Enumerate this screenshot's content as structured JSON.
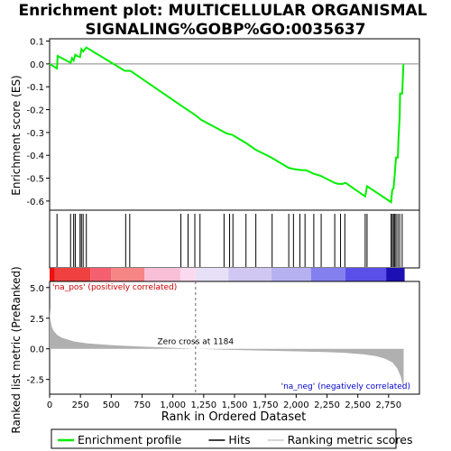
{
  "chart_data": {
    "type": "line",
    "title_line1": "Enrichment plot: MULTICELLULAR ORGANISMAL",
    "title_line2": "SIGNALING%GOBP%GO:0035637",
    "es_panel": {
      "ylabel": "Enrichment score (ES)",
      "ylim": [
        -0.64,
        0.11
      ],
      "yticks": [
        0.1,
        0.0,
        -0.1,
        -0.2,
        -0.3,
        -0.4,
        -0.5,
        -0.6
      ],
      "ytick_labels": [
        "0.1",
        "0.0",
        "-0.1",
        "-0.2",
        "-0.3",
        "-0.4",
        "-0.5",
        "-0.6"
      ],
      "grid": false,
      "series_name": "Enrichment profile",
      "color": "#00ee00",
      "points": [
        [
          0,
          0.0
        ],
        [
          60,
          -0.02
        ],
        [
          65,
          0.035
        ],
        [
          170,
          0.005
        ],
        [
          182,
          0.025
        ],
        [
          195,
          0.015
        ],
        [
          208,
          0.04
        ],
        [
          222,
          0.035
        ],
        [
          247,
          0.03
        ],
        [
          258,
          0.065
        ],
        [
          272,
          0.055
        ],
        [
          298,
          0.072
        ],
        [
          610,
          -0.03
        ],
        [
          655,
          -0.03
        ],
        [
          1060,
          -0.18
        ],
        [
          1130,
          -0.205
        ],
        [
          1185,
          -0.225
        ],
        [
          1230,
          -0.245
        ],
        [
          1405,
          -0.295
        ],
        [
          1440,
          -0.305
        ],
        [
          1480,
          -0.31
        ],
        [
          1590,
          -0.345
        ],
        [
          1670,
          -0.375
        ],
        [
          1800,
          -0.41
        ],
        [
          1940,
          -0.455
        ],
        [
          1980,
          -0.46
        ],
        [
          2040,
          -0.465
        ],
        [
          2080,
          -0.465
        ],
        [
          2140,
          -0.48
        ],
        [
          2200,
          -0.49
        ],
        [
          2310,
          -0.52
        ],
        [
          2340,
          -0.525
        ],
        [
          2380,
          -0.525
        ],
        [
          2400,
          -0.52
        ],
        [
          2560,
          -0.58
        ],
        [
          2575,
          -0.535
        ],
        [
          2770,
          -0.605
        ],
        [
          2780,
          -0.55
        ],
        [
          2790,
          -0.545
        ],
        [
          2800,
          -0.48
        ],
        [
          2810,
          -0.41
        ],
        [
          2825,
          -0.41
        ],
        [
          2830,
          -0.33
        ],
        [
          2840,
          -0.23
        ],
        [
          2843,
          -0.13
        ],
        [
          2860,
          -0.13
        ],
        [
          2870,
          -0.005
        ],
        [
          2872,
          0.0
        ]
      ]
    },
    "hits": {
      "series_name": "Hits",
      "positions": [
        60,
        170,
        195,
        208,
        247,
        258,
        272,
        298,
        617,
        650,
        1065,
        1123,
        1178,
        1220,
        1415,
        1460,
        1487,
        1593,
        1673,
        1805,
        1940,
        1978,
        2030,
        2072,
        2143,
        2203,
        2313,
        2360,
        2395,
        2560,
        2575,
        2770,
        2780,
        2790,
        2800,
        2810,
        2825,
        2840,
        2860
      ]
    },
    "heatmap_bar": {
      "segments": [
        {
          "from": 0,
          "to": 40,
          "color": "#ee1111"
        },
        {
          "from": 40,
          "to": 330,
          "color": "#f04040"
        },
        {
          "from": 330,
          "to": 500,
          "color": "#f46070"
        },
        {
          "from": 500,
          "to": 770,
          "color": "#f68585"
        },
        {
          "from": 770,
          "to": 1060,
          "color": "#f8bfd6"
        },
        {
          "from": 1060,
          "to": 1184,
          "color": "#fbd9ef"
        },
        {
          "from": 1184,
          "to": 1450,
          "color": "#e8e0f6"
        },
        {
          "from": 1450,
          "to": 1800,
          "color": "#d0c8f2"
        },
        {
          "from": 1800,
          "to": 2120,
          "color": "#b6b2f2"
        },
        {
          "from": 2120,
          "to": 2400,
          "color": "#8480ef"
        },
        {
          "from": 2400,
          "to": 2730,
          "color": "#5a4fe8"
        },
        {
          "from": 2730,
          "to": 2880,
          "color": "#1c10b4"
        }
      ]
    },
    "rank_panel": {
      "ylabel": "Ranked list metric (PreRanked)",
      "xlabel": "Rank in Ordered Dataset",
      "ylim": [
        -3.7,
        5.5
      ],
      "yticks": [
        5.0,
        2.5,
        0.0,
        -2.5
      ],
      "ytick_labels": [
        "5.0",
        "2.5",
        "0.0",
        "-2.5"
      ],
      "xlim": [
        0,
        3000
      ],
      "xticks": [
        0,
        250,
        500,
        750,
        1000,
        1250,
        1500,
        1750,
        2000,
        2250,
        2500,
        2750
      ],
      "xtick_labels": [
        "0",
        "250",
        "500",
        "750",
        "1,000",
        "1,250",
        "1,500",
        "1,750",
        "2,000",
        "2,250",
        "2,500",
        "2,750"
      ],
      "series_name": "Ranking metric scores",
      "color": "#b0b0b0",
      "profile": [
        [
          0,
          3.4
        ],
        [
          5,
          2.5
        ],
        [
          15,
          1.9
        ],
        [
          30,
          1.5
        ],
        [
          60,
          1.15
        ],
        [
          100,
          0.9
        ],
        [
          200,
          0.6
        ],
        [
          300,
          0.45
        ],
        [
          500,
          0.3
        ],
        [
          750,
          0.18
        ],
        [
          1000,
          0.08
        ],
        [
          1184,
          0.0
        ],
        [
          1400,
          -0.07
        ],
        [
          1750,
          -0.15
        ],
        [
          2000,
          -0.2
        ],
        [
          2250,
          -0.27
        ],
        [
          2400,
          -0.33
        ],
        [
          2550,
          -0.45
        ],
        [
          2650,
          -0.6
        ],
        [
          2720,
          -0.8
        ],
        [
          2780,
          -1.1
        ],
        [
          2820,
          -1.6
        ],
        [
          2850,
          -2.3
        ],
        [
          2865,
          -3.0
        ],
        [
          2872,
          -3.55
        ]
      ],
      "zero_cross_label": "Zero cross at 1184",
      "zero_cross_rank": 1184,
      "pos_label": "'na_pos' (positively correlated)",
      "neg_label": "'na_neg' (negatively correlated)"
    },
    "legend": [
      {
        "label": "Enrichment profile",
        "color": "#00ee00",
        "kind": "line"
      },
      {
        "label": "Hits",
        "color": "#000000",
        "kind": "line"
      },
      {
        "label": "Ranking metric scores",
        "color": "#c8c8c8",
        "kind": "line"
      }
    ]
  }
}
